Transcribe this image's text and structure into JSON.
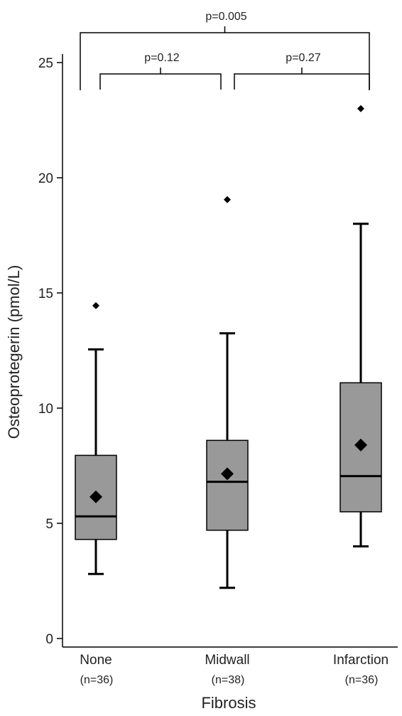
{
  "chart_data": {
    "type": "boxplot",
    "xlabel": "Fibrosis",
    "ylabel": "Osteoprotegerin (pmol/L)",
    "ylim": [
      0,
      25
    ],
    "yticks": [
      0,
      5,
      10,
      15,
      20,
      25
    ],
    "colors": {
      "box": "#999999",
      "line": "#000000"
    },
    "categories": [
      {
        "name": "None",
        "n": "(n=36)",
        "whisker_low": 2.8,
        "q1": 4.3,
        "median": 5.3,
        "q3": 7.95,
        "whisker_high": 12.55,
        "mean": 6.15,
        "outliers": [
          14.45
        ]
      },
      {
        "name": "Midwall",
        "n": "(n=38)",
        "whisker_low": 2.2,
        "q1": 4.7,
        "median": 6.8,
        "q3": 8.6,
        "whisker_high": 13.25,
        "mean": 7.15,
        "outliers": [
          19.05
        ]
      },
      {
        "name": "Infarction",
        "n": "(n=36)",
        "whisker_low": 4.0,
        "q1": 5.5,
        "median": 7.05,
        "q3": 11.1,
        "whisker_high": 18.0,
        "mean": 8.4,
        "outliers": [
          23.0
        ]
      }
    ],
    "comparisons": [
      {
        "groups": [
          "None",
          "Midwall"
        ],
        "label": "p=0.12"
      },
      {
        "groups": [
          "Midwall",
          "Infarction"
        ],
        "label": "p=0.27"
      },
      {
        "groups": [
          "None",
          "Infarction"
        ],
        "label": "p=0.005"
      }
    ]
  }
}
